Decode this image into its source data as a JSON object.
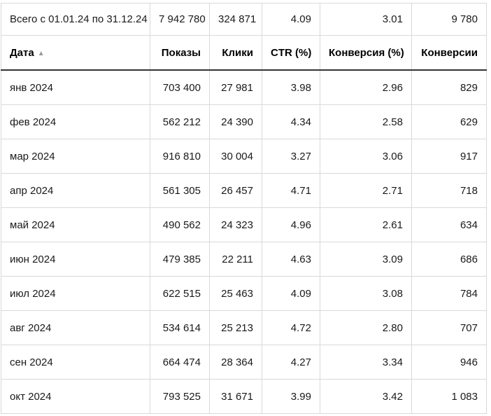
{
  "colors": {
    "grid_border": "#d9d9d9",
    "header_rule": "#333333",
    "text": "#1a1a1a",
    "sort_icon": "#999999"
  },
  "table": {
    "total_row": {
      "label": "Всего с 01.01.24 по 31.12.24",
      "impressions": "7 942 780",
      "clicks": "324 871",
      "ctr": "4.09",
      "conversion_rate": "3.01",
      "conversions": "9 780"
    },
    "header": {
      "date": "Дата",
      "sort_icon": "▲",
      "impressions": "Показы",
      "clicks": "Клики",
      "ctr": "CTR (%)",
      "conversion_rate": "Конверсия (%)",
      "conversions": "Конверсии"
    },
    "rows": [
      {
        "date": "янв 2024",
        "impressions": "703 400",
        "clicks": "27 981",
        "ctr": "3.98",
        "conversion_rate": "2.96",
        "conversions": "829"
      },
      {
        "date": "фев 2024",
        "impressions": "562 212",
        "clicks": "24 390",
        "ctr": "4.34",
        "conversion_rate": "2.58",
        "conversions": "629"
      },
      {
        "date": "мар 2024",
        "impressions": "916 810",
        "clicks": "30 004",
        "ctr": "3.27",
        "conversion_rate": "3.06",
        "conversions": "917"
      },
      {
        "date": "апр 2024",
        "impressions": "561 305",
        "clicks": "26 457",
        "ctr": "4.71",
        "conversion_rate": "2.71",
        "conversions": "718"
      },
      {
        "date": "май 2024",
        "impressions": "490 562",
        "clicks": "24 323",
        "ctr": "4.96",
        "conversion_rate": "2.61",
        "conversions": "634"
      },
      {
        "date": "июн 2024",
        "impressions": "479 385",
        "clicks": "22 211",
        "ctr": "4.63",
        "conversion_rate": "3.09",
        "conversions": "686"
      },
      {
        "date": "июл 2024",
        "impressions": "622 515",
        "clicks": "25 463",
        "ctr": "4.09",
        "conversion_rate": "3.08",
        "conversions": "784"
      },
      {
        "date": "авг 2024",
        "impressions": "534 614",
        "clicks": "25 213",
        "ctr": "4.72",
        "conversion_rate": "2.80",
        "conversions": "707"
      },
      {
        "date": "сен 2024",
        "impressions": "664 474",
        "clicks": "28 364",
        "ctr": "4.27",
        "conversion_rate": "3.34",
        "conversions": "946"
      },
      {
        "date": "окт 2024",
        "impressions": "793 525",
        "clicks": "31 671",
        "ctr": "3.99",
        "conversion_rate": "3.42",
        "conversions": "1 083"
      }
    ]
  }
}
